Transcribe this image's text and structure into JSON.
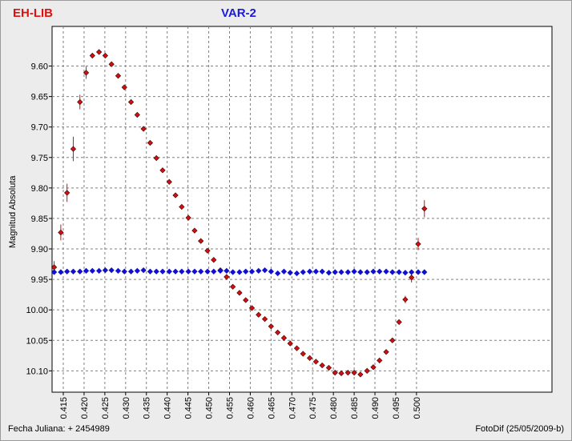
{
  "header": {
    "star_left": "EH-LIB",
    "star_right": "VAR-2"
  },
  "footer": {
    "julian_label": "Fecha Juliana:  + 2454989",
    "software": "FotoDif (25/05/2009-b)"
  },
  "colors": {
    "background": "#ececec",
    "plot_background": "#ffffff",
    "series_eh_lib": "#d01010",
    "series_var2": "#1010d0",
    "error_bar": "#d01010"
  },
  "chart_data": {
    "type": "scatter",
    "title": "",
    "xlabel": "",
    "ylabel": "Magnitud Absoluta",
    "xlim": [
      0.4123,
      0.5326
    ],
    "ylim": [
      9.535,
      10.135
    ],
    "y_inverted": true,
    "grid": true,
    "x_ticks": [
      "0.415",
      "0.420",
      "0.425",
      "0.430",
      "0.435",
      "0.440",
      "0.445",
      "0.450",
      "0.455",
      "0.460",
      "0.465",
      "0.470",
      "0.475",
      "0.480",
      "0.485",
      "0.490",
      "0.495",
      "0.500"
    ],
    "y_ticks": [
      "9.60",
      "9.65",
      "9.70",
      "9.75",
      "9.80",
      "9.85",
      "9.90",
      "9.95",
      "10.00",
      "10.05",
      "10.10"
    ],
    "series": [
      {
        "name": "EH-LIB",
        "marker": "diamond",
        "color": "#d01010",
        "points": [
          [
            0.4128,
            9.93,
            0.01
          ],
          [
            0.4144,
            9.873,
            0.013
          ],
          [
            0.4159,
            9.808,
            0.015
          ],
          [
            0.4174,
            9.736,
            0.02
          ],
          [
            0.419,
            9.659,
            0.012
          ],
          [
            0.4205,
            9.611,
            0.01
          ],
          [
            0.422,
            9.583,
            0.004
          ],
          [
            0.4236,
            9.577,
            0.003
          ],
          [
            0.4251,
            9.583,
            0.003
          ],
          [
            0.4266,
            9.597,
            0.003
          ],
          [
            0.4282,
            9.616,
            0.003
          ],
          [
            0.4297,
            9.635,
            0.003
          ],
          [
            0.4313,
            9.659,
            0.003
          ],
          [
            0.4328,
            9.68,
            0.003
          ],
          [
            0.4343,
            9.703,
            0.004
          ],
          [
            0.4359,
            9.726,
            0.004
          ],
          [
            0.4374,
            9.751,
            0.004
          ],
          [
            0.4389,
            9.771,
            0.004
          ],
          [
            0.4405,
            9.79,
            0.003
          ],
          [
            0.442,
            9.812,
            0.003
          ],
          [
            0.4435,
            9.831,
            0.003
          ],
          [
            0.4451,
            9.849,
            0.003
          ],
          [
            0.4466,
            9.87,
            0.003
          ],
          [
            0.4481,
            9.887,
            0.003
          ],
          [
            0.4497,
            9.903,
            0.004
          ],
          [
            0.4512,
            9.918,
            0.003
          ],
          [
            0.4528,
            9.935,
            0.003
          ],
          [
            0.4543,
            9.946,
            0.003
          ],
          [
            0.4558,
            9.962,
            0.003
          ],
          [
            0.4574,
            9.972,
            0.003
          ],
          [
            0.4589,
            9.984,
            0.003
          ],
          [
            0.4604,
            9.997,
            0.003
          ],
          [
            0.462,
            10.008,
            0.003
          ],
          [
            0.4635,
            10.015,
            0.003
          ],
          [
            0.465,
            10.027,
            0.003
          ],
          [
            0.4666,
            10.037,
            0.003
          ],
          [
            0.4681,
            10.046,
            0.003
          ],
          [
            0.4696,
            10.055,
            0.003
          ],
          [
            0.4712,
            10.063,
            0.003
          ],
          [
            0.4727,
            10.072,
            0.003
          ],
          [
            0.4743,
            10.079,
            0.003
          ],
          [
            0.4758,
            10.085,
            0.003
          ],
          [
            0.4773,
            10.091,
            0.003
          ],
          [
            0.4789,
            10.095,
            0.003
          ],
          [
            0.4804,
            10.103,
            0.003
          ],
          [
            0.4819,
            10.104,
            0.003
          ],
          [
            0.4835,
            10.103,
            0.003
          ],
          [
            0.485,
            10.103,
            0.003
          ],
          [
            0.4865,
            10.106,
            0.003
          ],
          [
            0.4881,
            10.1,
            0.003
          ],
          [
            0.4896,
            10.094,
            0.003
          ],
          [
            0.4911,
            10.083,
            0.003
          ],
          [
            0.4927,
            10.069,
            0.003
          ],
          [
            0.4942,
            10.05,
            0.003
          ],
          [
            0.4958,
            10.02,
            0.004
          ],
          [
            0.4973,
            9.983,
            0.006
          ],
          [
            0.4988,
            9.947,
            0.008
          ],
          [
            0.5004,
            9.892,
            0.01
          ],
          [
            0.5019,
            9.834,
            0.014
          ]
        ]
      },
      {
        "name": "VAR-2",
        "marker": "diamond",
        "color": "#1010d0",
        "points": [
          [
            0.4128,
            9.938
          ],
          [
            0.4144,
            9.938
          ],
          [
            0.4159,
            9.937
          ],
          [
            0.4174,
            9.937
          ],
          [
            0.419,
            9.937
          ],
          [
            0.4205,
            9.936
          ],
          [
            0.422,
            9.936
          ],
          [
            0.4236,
            9.936
          ],
          [
            0.4251,
            9.935
          ],
          [
            0.4266,
            9.935
          ],
          [
            0.4282,
            9.936
          ],
          [
            0.4297,
            9.937
          ],
          [
            0.4313,
            9.937
          ],
          [
            0.4328,
            9.936
          ],
          [
            0.4343,
            9.935
          ],
          [
            0.4359,
            9.937
          ],
          [
            0.4374,
            9.937
          ],
          [
            0.4389,
            9.937
          ],
          [
            0.4405,
            9.937
          ],
          [
            0.442,
            9.937
          ],
          [
            0.4435,
            9.937
          ],
          [
            0.4451,
            9.937
          ],
          [
            0.4466,
            9.937
          ],
          [
            0.4481,
            9.937
          ],
          [
            0.4497,
            9.937
          ],
          [
            0.4512,
            9.937
          ],
          [
            0.4528,
            9.936
          ],
          [
            0.4543,
            9.936
          ],
          [
            0.4558,
            9.938
          ],
          [
            0.4574,
            9.938
          ],
          [
            0.4589,
            9.937
          ],
          [
            0.4604,
            9.937
          ],
          [
            0.462,
            9.936
          ],
          [
            0.4635,
            9.935
          ],
          [
            0.465,
            9.937
          ],
          [
            0.4666,
            9.94
          ],
          [
            0.4681,
            9.937
          ],
          [
            0.4696,
            9.939
          ],
          [
            0.4712,
            9.94
          ],
          [
            0.4727,
            9.938
          ],
          [
            0.4743,
            9.937
          ],
          [
            0.4758,
            9.937
          ],
          [
            0.4773,
            9.937
          ],
          [
            0.4789,
            9.939
          ],
          [
            0.4804,
            9.938
          ],
          [
            0.4819,
            9.938
          ],
          [
            0.4835,
            9.938
          ],
          [
            0.485,
            9.937
          ],
          [
            0.4865,
            9.938
          ],
          [
            0.4881,
            9.938
          ],
          [
            0.4896,
            9.937
          ],
          [
            0.4911,
            9.937
          ],
          [
            0.4927,
            9.937
          ],
          [
            0.4942,
            9.938
          ],
          [
            0.4958,
            9.938
          ],
          [
            0.4973,
            9.939
          ],
          [
            0.4988,
            9.938
          ],
          [
            0.5004,
            9.938
          ],
          [
            0.5019,
            9.938
          ]
        ]
      }
    ]
  }
}
